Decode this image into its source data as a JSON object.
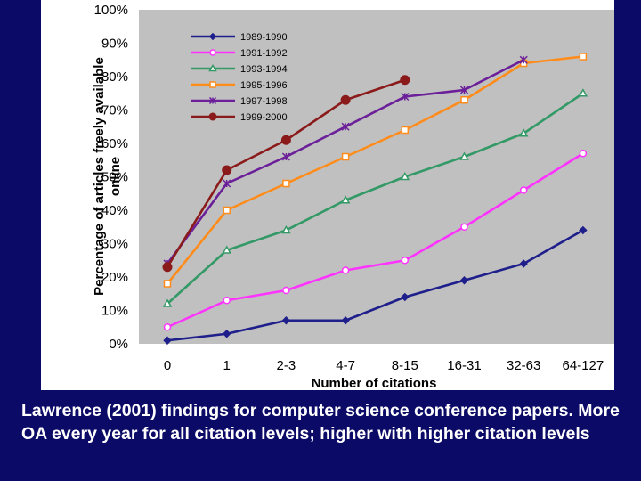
{
  "chart_data": {
    "type": "line",
    "title": "",
    "xlabel": "Number of citations",
    "ylabel": "Percentage of articles freely available online",
    "ylabel_lines": [
      "Percentage of articles freely available",
      "online"
    ],
    "ylim": [
      0,
      100
    ],
    "yticks": [
      "0%",
      "10%",
      "20%",
      "30%",
      "40%",
      "50%",
      "60%",
      "70%",
      "80%",
      "90%",
      "100%"
    ],
    "categories": [
      "0",
      "1",
      "2-3",
      "4-7",
      "8-15",
      "16-31",
      "32-63",
      "64-127"
    ],
    "grid": false,
    "legend_position": "top-left",
    "series": [
      {
        "name": "1989-1990",
        "color": "#1f1f8c",
        "marker": "diamond",
        "values": [
          1,
          3,
          7,
          7,
          14,
          19,
          24,
          34
        ]
      },
      {
        "name": "1991-1992",
        "color": "#ff33ff",
        "marker": "circle-open",
        "values": [
          5,
          13,
          16,
          22,
          25,
          35,
          46,
          57
        ]
      },
      {
        "name": "1993-1994",
        "color": "#339966",
        "marker": "triangle-open",
        "values": [
          12,
          28,
          34,
          43,
          50,
          56,
          63,
          75
        ]
      },
      {
        "name": "1995-1996",
        "color": "#ff8c1a",
        "marker": "square-open",
        "values": [
          18,
          40,
          48,
          56,
          64,
          73,
          84,
          86
        ]
      },
      {
        "name": "1997-1998",
        "color": "#6b1f99",
        "marker": "star",
        "values": [
          24,
          48,
          56,
          65,
          74,
          76,
          85,
          null
        ]
      },
      {
        "name": "1999-2000",
        "color": "#8b1a1a",
        "marker": "circle-filled",
        "values": [
          23,
          52,
          61,
          73,
          79,
          null,
          null,
          null
        ]
      }
    ]
  },
  "caption": "Lawrence (2001) findings for computer science conference papers.  More OA every year for all citation levels; higher with higher citation levels"
}
